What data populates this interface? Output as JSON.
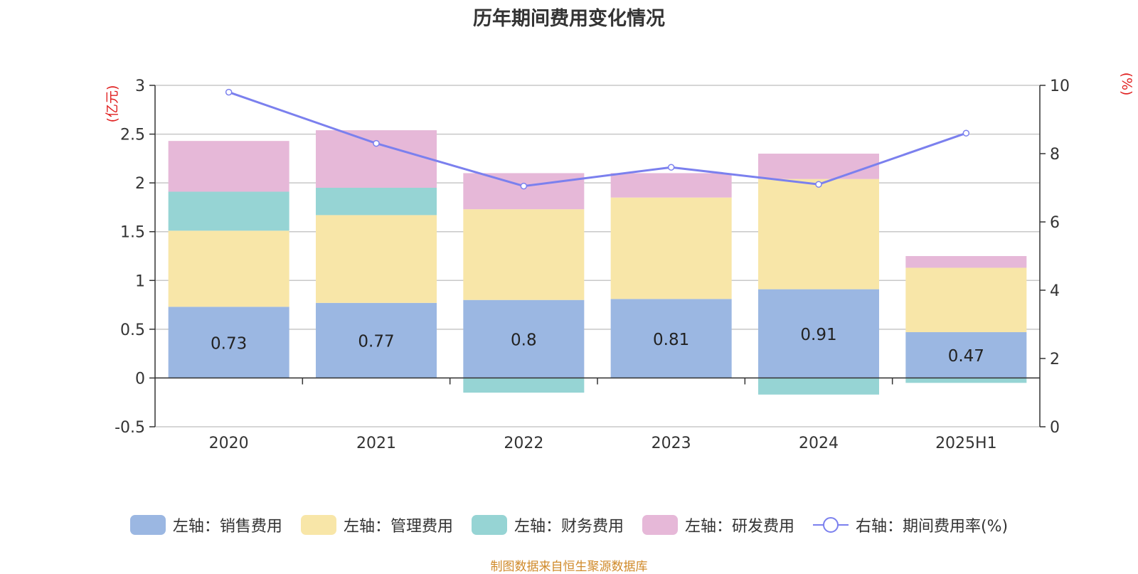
{
  "title": "历年期间费用变化情况",
  "source": "制图数据来自恒生聚源数据库",
  "colors": {
    "sales": "#9bb7e2",
    "admin": "#f8e6a8",
    "finance": "#96d4d4",
    "rd": "#e6b8d8",
    "rate": "#7b80ee",
    "axis_unit": "#e02020"
  },
  "chart_data": {
    "type": "bar",
    "stacked": true,
    "categories": [
      "2020",
      "2021",
      "2022",
      "2023",
      "2024",
      "2025H1"
    ],
    "left_axis": {
      "unit": "(亿元)",
      "ylim": [
        -0.5,
        3
      ],
      "ticks": [
        "-0.5",
        "0",
        "0.5",
        "1",
        "1.5",
        "2",
        "2.5",
        "3"
      ]
    },
    "right_axis": {
      "unit": "(%)",
      "ylim": [
        0,
        10
      ],
      "ticks": [
        "0",
        "2",
        "4",
        "6",
        "8",
        "10"
      ]
    },
    "series": [
      {
        "key": "sales",
        "name": "左轴：销售费用",
        "values": [
          0.73,
          0.77,
          0.8,
          0.81,
          0.91,
          0.47
        ],
        "labels": [
          "0.73",
          "0.77",
          "0.8",
          "0.81",
          "0.91",
          "0.47"
        ]
      },
      {
        "key": "admin",
        "name": "左轴：管理费用",
        "values": [
          0.78,
          0.9,
          0.93,
          1.04,
          1.13,
          0.66
        ]
      },
      {
        "key": "finance",
        "name": "左轴：财务费用",
        "values": [
          0.4,
          0.28,
          -0.15,
          0.0,
          -0.17,
          -0.05
        ]
      },
      {
        "key": "rd",
        "name": "左轴：研发费用",
        "values": [
          0.52,
          0.59,
          0.37,
          0.25,
          0.26,
          0.12
        ]
      }
    ],
    "line": {
      "key": "rate",
      "name": "右轴：期间费用率(%)",
      "values": [
        9.8,
        8.3,
        7.05,
        7.6,
        7.1,
        8.6
      ]
    },
    "grid": true,
    "legend_position": "bottom"
  }
}
